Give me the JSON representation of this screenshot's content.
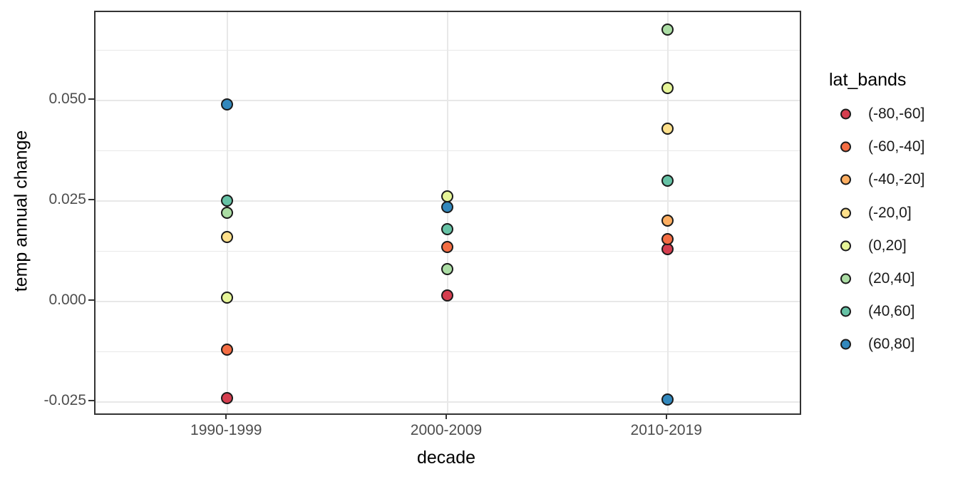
{
  "style": {
    "background": "#ffffff",
    "panel_border": "#333333",
    "grid_color": "#e8e8e8",
    "tick_color": "#333333",
    "axis_text_color": "#4d4d4d",
    "axis_title_color": "#000000",
    "point_stroke": "#1a1a1a"
  },
  "chart_data": {
    "type": "scatter",
    "title": "",
    "xlabel": "decade",
    "ylabel": "temp annual change",
    "categories": [
      "1990-1999",
      "2000-2009",
      "2010-2019"
    ],
    "ylim": [
      -0.0278,
      0.072
    ],
    "yticks": [
      {
        "value": -0.025,
        "label": "-0.025"
      },
      {
        "value": 0.0,
        "label": "0.000"
      },
      {
        "value": 0.025,
        "label": "0.025"
      },
      {
        "value": 0.05,
        "label": "0.050"
      }
    ],
    "yticks_minor": [
      -0.0125,
      0.0125,
      0.0375,
      0.0625
    ],
    "grid": true,
    "legend": {
      "title": "lat_bands",
      "position": "right",
      "entries": [
        {
          "label": "(-80,-60]",
          "color": "#D53E4F"
        },
        {
          "label": "(-60,-40]",
          "color": "#F46D43"
        },
        {
          "label": "(-40,-20]",
          "color": "#FDAE61"
        },
        {
          "label": "(-20,0]",
          "color": "#FEE08B"
        },
        {
          "label": "(0,20]",
          "color": "#E6F598"
        },
        {
          "label": "(20,40]",
          "color": "#ABDDA4"
        },
        {
          "label": "(40,60]",
          "color": "#66C2A5"
        },
        {
          "label": "(60,80]",
          "color": "#3288BD"
        }
      ]
    },
    "series": [
      {
        "name": "(-80,-60]",
        "color": "#D53E4F",
        "points": [
          {
            "x": "1990-1999",
            "y": -0.024
          },
          {
            "x": "2000-2009",
            "y": 0.0015
          },
          {
            "x": "2010-2019",
            "y": 0.013
          }
        ]
      },
      {
        "name": "(-60,-40]",
        "color": "#F46D43",
        "points": [
          {
            "x": "1990-1999",
            "y": -0.012
          },
          {
            "x": "2000-2009",
            "y": 0.0135
          },
          {
            "x": "2010-2019",
            "y": 0.0155
          }
        ]
      },
      {
        "name": "(-40,-20]",
        "color": "#FDAE61",
        "points": [
          {
            "x": "2010-2019",
            "y": 0.02
          }
        ]
      },
      {
        "name": "(-20,0]",
        "color": "#FEE08B",
        "points": [
          {
            "x": "1990-1999",
            "y": 0.016
          },
          {
            "x": "2010-2019",
            "y": 0.043
          }
        ]
      },
      {
        "name": "(0,20]",
        "color": "#E6F598",
        "points": [
          {
            "x": "1990-1999",
            "y": 0.001
          },
          {
            "x": "2000-2009",
            "y": 0.026
          },
          {
            "x": "2010-2019",
            "y": 0.053
          }
        ]
      },
      {
        "name": "(20,40]",
        "color": "#ABDDA4",
        "points": [
          {
            "x": "1990-1999",
            "y": 0.022
          },
          {
            "x": "2000-2009",
            "y": 0.008
          },
          {
            "x": "2010-2019",
            "y": 0.0675
          }
        ]
      },
      {
        "name": "(40,60]",
        "color": "#66C2A5",
        "points": [
          {
            "x": "1990-1999",
            "y": 0.025
          },
          {
            "x": "2000-2009",
            "y": 0.018
          },
          {
            "x": "2010-2019",
            "y": 0.03
          }
        ]
      },
      {
        "name": "(60,80]",
        "color": "#3288BD",
        "points": [
          {
            "x": "1990-1999",
            "y": 0.049
          },
          {
            "x": "2000-2009",
            "y": 0.0235
          },
          {
            "x": "2010-2019",
            "y": -0.0245
          }
        ]
      }
    ]
  }
}
